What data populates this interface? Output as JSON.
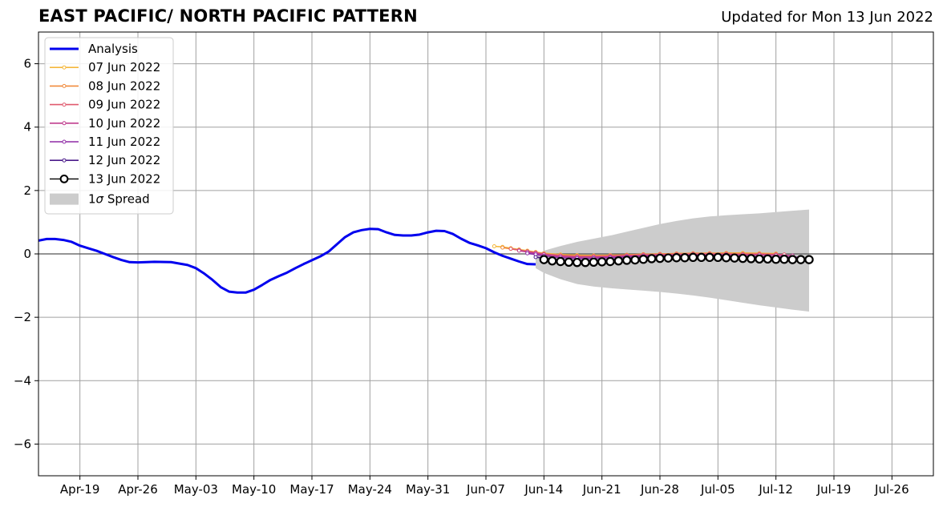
{
  "header": {
    "title": "EAST PACIFIC/ NORTH PACIFIC PATTERN",
    "updated": "Updated for Mon 13 Jun 2022"
  },
  "chart_data": {
    "type": "line",
    "title": "EAST PACIFIC/ NORTH PACIFIC PATTERN",
    "xlabel": "",
    "ylabel": "",
    "xlim": [
      "2022-04-14",
      "2022-07-31"
    ],
    "ylim": [
      -7,
      7
    ],
    "grid": true,
    "legend_position": "top-left",
    "x_tick_labels": [
      "Apr-19",
      "Apr-26",
      "May-03",
      "May-10",
      "May-17",
      "May-24",
      "May-31",
      "Jun-07",
      "Jun-14",
      "Jun-21",
      "Jun-28",
      "Jul-05",
      "Jul-12",
      "Jul-19",
      "Jul-26"
    ],
    "x_tick_dates": [
      "2022-04-19",
      "2022-04-26",
      "2022-05-03",
      "2022-05-10",
      "2022-05-17",
      "2022-05-24",
      "2022-05-31",
      "2022-06-07",
      "2022-06-14",
      "2022-06-21",
      "2022-06-28",
      "2022-07-05",
      "2022-07-12",
      "2022-07-19",
      "2022-07-26"
    ],
    "y_ticks": [
      -6,
      -4,
      -2,
      0,
      2,
      4,
      6
    ],
    "y_tick_labels": [
      "−6",
      "−4",
      "−2",
      "0",
      "2",
      "4",
      "6"
    ],
    "series": [
      {
        "name": "Analysis",
        "color": "#0000ee",
        "style": "line",
        "x": [
          "2022-04-14",
          "2022-04-15",
          "2022-04-16",
          "2022-04-17",
          "2022-04-18",
          "2022-04-19",
          "2022-04-20",
          "2022-04-21",
          "2022-04-22",
          "2022-04-23",
          "2022-04-24",
          "2022-04-25",
          "2022-04-26",
          "2022-04-28",
          "2022-04-30",
          "2022-05-02",
          "2022-05-03",
          "2022-05-04",
          "2022-05-05",
          "2022-05-06",
          "2022-05-07",
          "2022-05-08",
          "2022-05-09",
          "2022-05-10",
          "2022-05-11",
          "2022-05-12",
          "2022-05-13",
          "2022-05-14",
          "2022-05-15",
          "2022-05-16",
          "2022-05-17",
          "2022-05-18",
          "2022-05-19",
          "2022-05-20",
          "2022-05-21",
          "2022-05-22",
          "2022-05-23",
          "2022-05-24",
          "2022-05-25",
          "2022-05-26",
          "2022-05-27",
          "2022-05-28",
          "2022-05-29",
          "2022-05-30",
          "2022-05-31",
          "2022-06-01",
          "2022-06-02",
          "2022-06-03",
          "2022-06-04",
          "2022-06-05",
          "2022-06-06",
          "2022-06-07",
          "2022-06-08",
          "2022-06-09",
          "2022-06-10",
          "2022-06-11",
          "2022-06-12",
          "2022-06-13"
        ],
        "values": [
          0.42,
          0.47,
          0.47,
          0.44,
          0.38,
          0.26,
          0.18,
          0.1,
          0.0,
          -0.1,
          -0.19,
          -0.26,
          -0.27,
          -0.25,
          -0.26,
          -0.35,
          -0.45,
          -0.62,
          -0.82,
          -1.05,
          -1.19,
          -1.22,
          -1.22,
          -1.13,
          -0.98,
          -0.82,
          -0.7,
          -0.59,
          -0.45,
          -0.32,
          -0.2,
          -0.08,
          0.07,
          0.3,
          0.53,
          0.68,
          0.75,
          0.79,
          0.78,
          0.68,
          0.6,
          0.58,
          0.58,
          0.61,
          0.68,
          0.73,
          0.72,
          0.63,
          0.48,
          0.35,
          0.27,
          0.18,
          0.05,
          -0.06,
          -0.15,
          -0.24,
          -0.32,
          -0.33
        ]
      },
      {
        "name": "07 Jun 2022",
        "color": "#f4b73c",
        "style": "line-dots",
        "x": [
          "2022-06-08",
          "2022-06-09",
          "2022-06-10",
          "2022-06-11",
          "2022-06-12",
          "2022-06-13",
          "2022-06-14",
          "2022-06-16",
          "2022-06-18",
          "2022-06-20",
          "2022-06-22",
          "2022-06-24",
          "2022-06-26",
          "2022-06-28",
          "2022-06-30",
          "2022-07-02",
          "2022-07-04",
          "2022-07-06",
          "2022-07-08",
          "2022-07-10",
          "2022-07-12"
        ],
        "values": [
          0.24,
          0.22,
          0.18,
          0.14,
          0.1,
          0.06,
          0.02,
          -0.02,
          -0.04,
          -0.05,
          -0.04,
          -0.03,
          -0.01,
          0.0,
          0.01,
          0.02,
          0.02,
          0.03,
          0.03,
          0.02,
          0.01
        ]
      },
      {
        "name": "08 Jun 2022",
        "color": "#f08a3c",
        "style": "line-dots",
        "x": [
          "2022-06-09",
          "2022-06-10",
          "2022-06-11",
          "2022-06-12",
          "2022-06-13",
          "2022-06-14",
          "2022-06-16",
          "2022-06-18",
          "2022-06-20",
          "2022-06-22",
          "2022-06-24",
          "2022-06-26",
          "2022-06-28",
          "2022-06-30",
          "2022-07-02",
          "2022-07-04",
          "2022-07-06",
          "2022-07-08",
          "2022-07-10",
          "2022-07-12"
        ],
        "values": [
          0.2,
          0.16,
          0.12,
          0.08,
          0.04,
          0.0,
          -0.04,
          -0.06,
          -0.06,
          -0.05,
          -0.03,
          -0.01,
          0.0,
          0.01,
          0.02,
          0.02,
          0.02,
          0.01,
          0.01,
          0.0
        ]
      },
      {
        "name": "09 Jun 2022",
        "color": "#e05a6e",
        "style": "line-dots",
        "x": [
          "2022-06-10",
          "2022-06-11",
          "2022-06-12",
          "2022-06-13",
          "2022-06-14",
          "2022-06-16",
          "2022-06-18",
          "2022-06-20",
          "2022-06-22",
          "2022-06-24",
          "2022-06-26",
          "2022-06-28",
          "2022-06-30",
          "2022-07-02",
          "2022-07-04",
          "2022-07-06",
          "2022-07-08",
          "2022-07-10",
          "2022-07-12",
          "2022-07-13"
        ],
        "values": [
          0.16,
          0.12,
          0.08,
          0.04,
          0.0,
          -0.05,
          -0.08,
          -0.08,
          -0.07,
          -0.05,
          -0.03,
          -0.02,
          -0.01,
          0.0,
          0.0,
          0.0,
          -0.01,
          -0.01,
          -0.02,
          -0.02
        ]
      },
      {
        "name": "10 Jun 2022",
        "color": "#c03d8e",
        "style": "line-dots",
        "x": [
          "2022-06-11",
          "2022-06-12",
          "2022-06-13",
          "2022-06-14",
          "2022-06-16",
          "2022-06-18",
          "2022-06-20",
          "2022-06-22",
          "2022-06-24",
          "2022-06-26",
          "2022-06-28",
          "2022-06-30",
          "2022-07-02",
          "2022-07-04",
          "2022-07-06",
          "2022-07-08",
          "2022-07-10",
          "2022-07-12",
          "2022-07-14"
        ],
        "values": [
          0.1,
          0.06,
          0.02,
          -0.02,
          -0.08,
          -0.1,
          -0.1,
          -0.09,
          -0.07,
          -0.05,
          -0.04,
          -0.03,
          -0.02,
          -0.02,
          -0.02,
          -0.03,
          -0.03,
          -0.04,
          -0.05
        ]
      },
      {
        "name": "11 Jun 2022",
        "color": "#8e2aa6",
        "style": "line-dots",
        "x": [
          "2022-06-12",
          "2022-06-13",
          "2022-06-14",
          "2022-06-16",
          "2022-06-18",
          "2022-06-20",
          "2022-06-22",
          "2022-06-24",
          "2022-06-26",
          "2022-06-28",
          "2022-06-30",
          "2022-07-02",
          "2022-07-04",
          "2022-07-06",
          "2022-07-08",
          "2022-07-10",
          "2022-07-12",
          "2022-07-14",
          "2022-07-15"
        ],
        "values": [
          0.02,
          -0.02,
          -0.06,
          -0.12,
          -0.14,
          -0.14,
          -0.12,
          -0.1,
          -0.08,
          -0.07,
          -0.06,
          -0.06,
          -0.06,
          -0.07,
          -0.08,
          -0.09,
          -0.1,
          -0.1,
          -0.11
        ]
      },
      {
        "name": "12 Jun 2022",
        "color": "#4a1a8a",
        "style": "line-dots",
        "x": [
          "2022-06-13",
          "2022-06-14",
          "2022-06-16",
          "2022-06-18",
          "2022-06-20",
          "2022-06-22",
          "2022-06-24",
          "2022-06-26",
          "2022-06-28",
          "2022-06-30",
          "2022-07-02",
          "2022-07-04",
          "2022-07-06",
          "2022-07-08",
          "2022-07-10",
          "2022-07-12",
          "2022-07-14",
          "2022-07-16"
        ],
        "values": [
          -0.1,
          -0.14,
          -0.2,
          -0.22,
          -0.21,
          -0.19,
          -0.17,
          -0.15,
          -0.14,
          -0.13,
          -0.12,
          -0.12,
          -0.13,
          -0.14,
          -0.15,
          -0.16,
          -0.17,
          -0.18
        ]
      },
      {
        "name": "13 Jun 2022",
        "color": "#000000",
        "style": "line-open-circles",
        "x": [
          "2022-06-14",
          "2022-06-15",
          "2022-06-16",
          "2022-06-17",
          "2022-06-18",
          "2022-06-19",
          "2022-06-20",
          "2022-06-21",
          "2022-06-22",
          "2022-06-23",
          "2022-06-24",
          "2022-06-25",
          "2022-06-26",
          "2022-06-27",
          "2022-06-28",
          "2022-06-29",
          "2022-06-30",
          "2022-07-01",
          "2022-07-02",
          "2022-07-03",
          "2022-07-04",
          "2022-07-05",
          "2022-07-06",
          "2022-07-07",
          "2022-07-08",
          "2022-07-09",
          "2022-07-10",
          "2022-07-11",
          "2022-07-12",
          "2022-07-13",
          "2022-07-14",
          "2022-07-15",
          "2022-07-16"
        ],
        "values": [
          -0.18,
          -0.22,
          -0.24,
          -0.26,
          -0.27,
          -0.27,
          -0.26,
          -0.25,
          -0.24,
          -0.22,
          -0.2,
          -0.19,
          -0.17,
          -0.15,
          -0.14,
          -0.13,
          -0.12,
          -0.12,
          -0.11,
          -0.11,
          -0.11,
          -0.11,
          -0.12,
          -0.13,
          -0.14,
          -0.15,
          -0.16,
          -0.16,
          -0.17,
          -0.17,
          -0.18,
          -0.18,
          -0.18
        ]
      }
    ],
    "spread": {
      "name": "1σ Spread",
      "color": "#cccccc",
      "x": [
        "2022-06-13",
        "2022-06-14",
        "2022-06-16",
        "2022-06-18",
        "2022-06-20",
        "2022-06-22",
        "2022-06-24",
        "2022-06-26",
        "2022-06-28",
        "2022-06-30",
        "2022-07-02",
        "2022-07-04",
        "2022-07-06",
        "2022-07-08",
        "2022-07-10",
        "2022-07-12",
        "2022-07-14",
        "2022-07-16"
      ],
      "upper": [
        -0.05,
        0.1,
        0.25,
        0.38,
        0.48,
        0.58,
        0.7,
        0.82,
        0.94,
        1.04,
        1.12,
        1.18,
        1.22,
        1.25,
        1.28,
        1.32,
        1.36,
        1.4
      ],
      "lower": [
        -0.45,
        -0.6,
        -0.8,
        -0.95,
        -1.03,
        -1.08,
        -1.12,
        -1.16,
        -1.2,
        -1.25,
        -1.31,
        -1.38,
        -1.46,
        -1.54,
        -1.62,
        -1.69,
        -1.76,
        -1.82
      ]
    },
    "legend": {
      "sigma_symbol": "σ",
      "spread_label_prefix": "1",
      "spread_label_suffix": " Spread"
    }
  }
}
